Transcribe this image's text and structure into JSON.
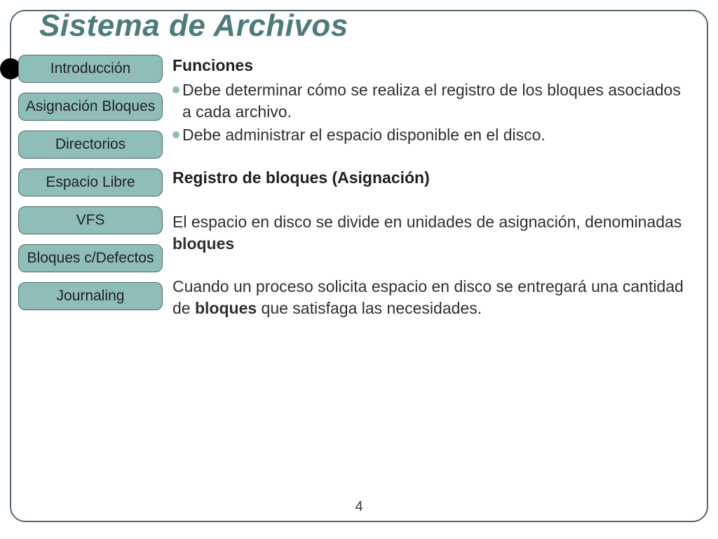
{
  "colors": {
    "title": "#4d7b7b",
    "nav_fill": "#8fbdb8",
    "nav_border": "#4d6d68",
    "bullet": "#8fbdb8",
    "frame_border": "#556b5f"
  },
  "typography": {
    "title_fontsize": 44,
    "nav_fontsize": 21,
    "body_fontsize": 23
  },
  "title": "Sistema de Archivos",
  "page_number": "4",
  "sidebar": {
    "items": [
      {
        "label": "Introducción"
      },
      {
        "label": "Asignación Bloques"
      },
      {
        "label": "Directorios"
      },
      {
        "label": "Espacio Libre"
      },
      {
        "label": "VFS"
      },
      {
        "label": "Bloques c/Defectos"
      },
      {
        "label": "Journaling"
      }
    ]
  },
  "content": {
    "heading1": "Funciones",
    "bullets": [
      "Debe determinar cómo se realiza el registro de los bloques asociados a cada archivo.",
      "Debe administrar el espacio disponible en el disco."
    ],
    "heading2": "Registro de bloques (Asignación)",
    "para1_pre": "El espacio en disco se divide en unidades de asignación, denominadas ",
    "para1_bold": "bloques",
    "para2_pre": "Cuando un proceso solicita espacio en disco se entregará una cantidad de ",
    "para2_bold": "bloques",
    "para2_post": " que satisfaga las necesidades."
  }
}
